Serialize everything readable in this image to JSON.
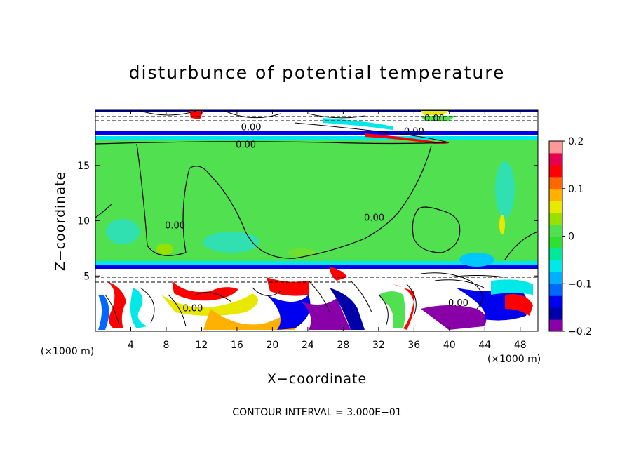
{
  "chart_data": {
    "type": "heatmap",
    "title": "disturbunce of potential temperature",
    "xlabel": "X−coordinate",
    "ylabel": "Z−coordinate",
    "x_unit": "(×1000 m)",
    "y_unit": "(×1000 m)",
    "xlim": [
      0,
      50
    ],
    "ylim": [
      0,
      20
    ],
    "x_ticks": [
      4,
      8,
      12,
      16,
      20,
      24,
      28,
      32,
      36,
      40,
      44,
      48
    ],
    "y_ticks": [
      5,
      10,
      15
    ],
    "colorbar": {
      "min": -0.2,
      "max": 0.2,
      "ticks": [
        0.2,
        0.1,
        0,
        -0.1,
        -0.2
      ],
      "tick_labels": [
        "0.2",
        "0.1",
        "0",
        "−0.1",
        "−0.2"
      ],
      "colors": [
        "#8a00a8",
        "#0000a8",
        "#0000f0",
        "#0068ff",
        "#00b0ff",
        "#00e8e8",
        "#00e898",
        "#30e030",
        "#50e050",
        "#98e000",
        "#e8e800",
        "#ffb000",
        "#ff6800",
        "#ff0000",
        "#e80050",
        "#ff9898"
      ]
    },
    "contour_labels": [
      {
        "text": "0.00",
        "x": 17.6,
        "y": 18.2
      },
      {
        "text": "0.00",
        "x": 17.0,
        "y": 16.6
      },
      {
        "text": "0.00",
        "x": 38.3,
        "y": 19.0
      },
      {
        "text": "0.00",
        "x": 36.0,
        "y": 17.8
      },
      {
        "text": "0.00",
        "x": 9.0,
        "y": 9.3
      },
      {
        "text": "0.00",
        "x": 31.5,
        "y": 10.0
      },
      {
        "text": "0.00",
        "x": 11.0,
        "y": 1.8
      },
      {
        "text": "0.00",
        "x": 41.0,
        "y": 2.3
      }
    ],
    "footer": "CONTOUR INTERVAL = 3.000E−01"
  }
}
